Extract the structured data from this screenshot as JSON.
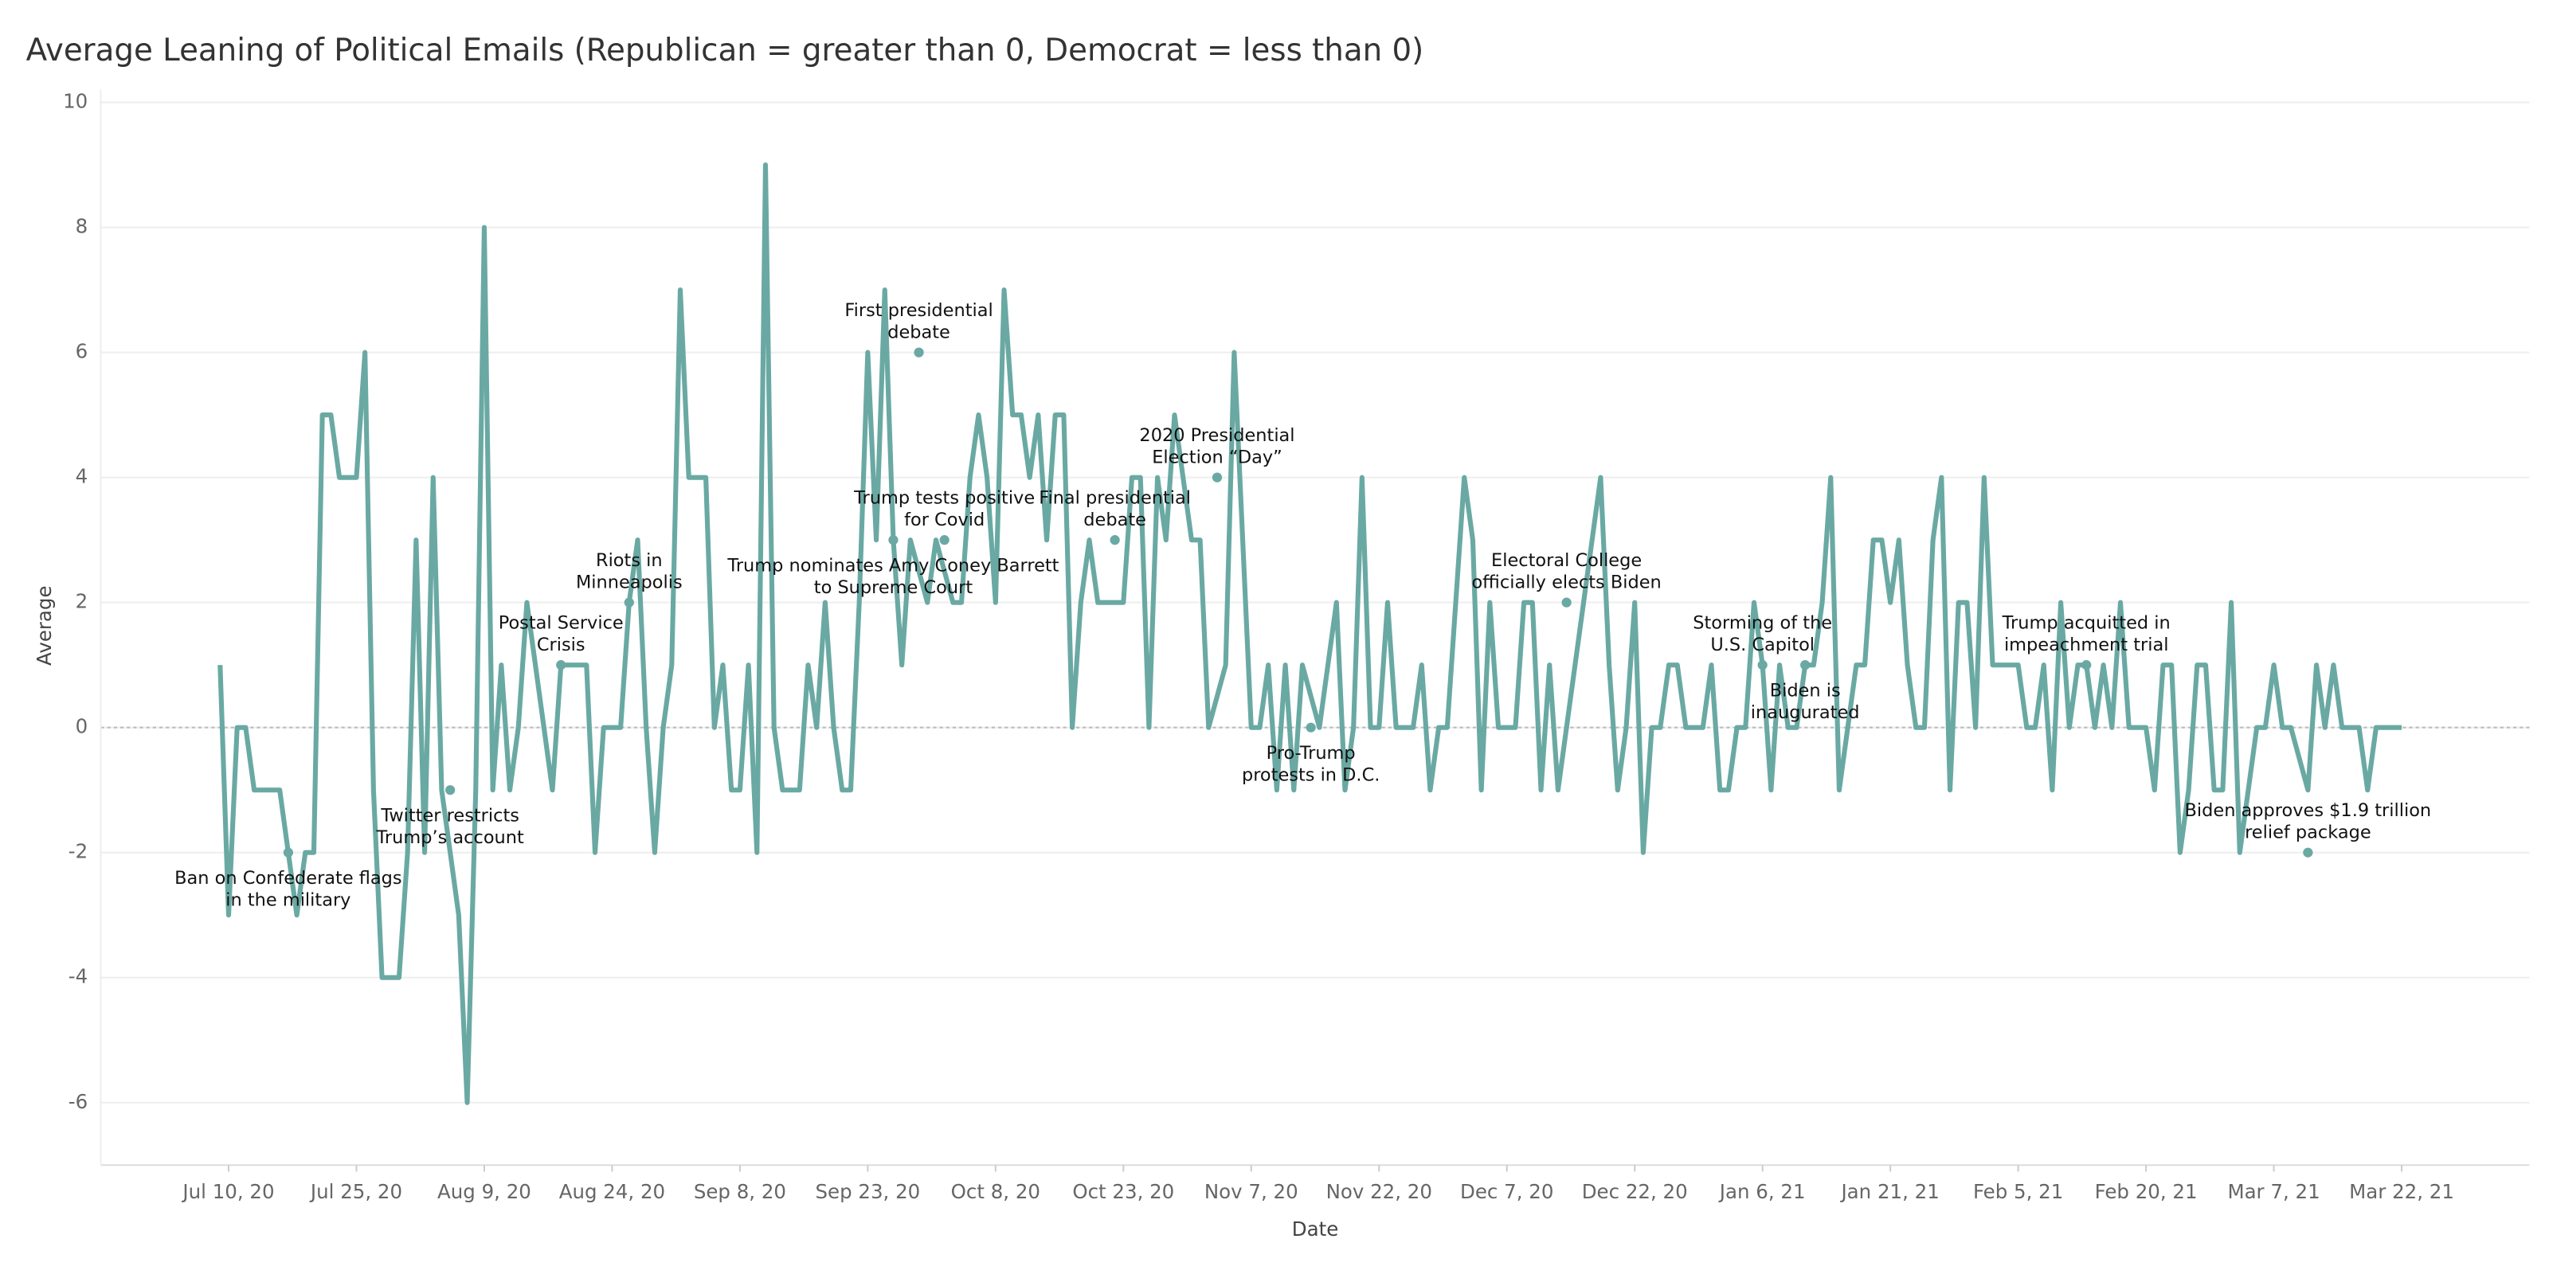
{
  "chart_data": {
    "type": "line",
    "title": "Average Leaning of Political Emails (Republican = greater than 0, Democrat = less than 0)",
    "x_label": "Date",
    "y_label": "Average",
    "xlim": [
      "2020-06-25",
      "2021-04-06"
    ],
    "ylim": [
      -7,
      10
    ],
    "yticks": [
      -6,
      -4,
      -2,
      0,
      2,
      4,
      6,
      8,
      10
    ],
    "xticks": [
      {
        "value": "2020-07-10",
        "label": "Jul 10, 20"
      },
      {
        "value": "2020-07-25",
        "label": "Jul 25, 20"
      },
      {
        "value": "2020-08-09",
        "label": "Aug 9, 20"
      },
      {
        "value": "2020-08-24",
        "label": "Aug 24, 20"
      },
      {
        "value": "2020-09-08",
        "label": "Sep 8, 20"
      },
      {
        "value": "2020-09-23",
        "label": "Sep 23, 20"
      },
      {
        "value": "2020-10-08",
        "label": "Oct 8, 20"
      },
      {
        "value": "2020-10-23",
        "label": "Oct 23, 20"
      },
      {
        "value": "2020-11-07",
        "label": "Nov 7, 20"
      },
      {
        "value": "2020-11-22",
        "label": "Nov 22, 20"
      },
      {
        "value": "2020-12-07",
        "label": "Dec 7, 20"
      },
      {
        "value": "2020-12-22",
        "label": "Dec 22, 20"
      },
      {
        "value": "2021-01-06",
        "label": "Jan 6, 21"
      },
      {
        "value": "2021-01-21",
        "label": "Jan 21, 21"
      },
      {
        "value": "2021-02-05",
        "label": "Feb 5, 21"
      },
      {
        "value": "2021-02-20",
        "label": "Feb 20, 21"
      },
      {
        "value": "2021-03-07",
        "label": "Mar 7, 21"
      },
      {
        "value": "2021-03-22",
        "label": "Mar 22, 21"
      }
    ],
    "grid": true,
    "zero_line": true,
    "x": [
      "2020-07-09",
      "2020-07-10",
      "2020-07-11",
      "2020-07-12",
      "2020-07-13",
      "2020-07-14",
      "2020-07-15",
      "2020-07-16",
      "2020-07-17",
      "2020-07-18",
      "2020-07-19",
      "2020-07-20",
      "2020-07-21",
      "2020-07-22",
      "2020-07-23",
      "2020-07-24",
      "2020-07-25",
      "2020-07-26",
      "2020-07-27",
      "2020-07-28",
      "2020-07-29",
      "2020-07-30",
      "2020-07-31",
      "2020-08-01",
      "2020-08-02",
      "2020-08-03",
      "2020-08-04",
      "2020-08-05",
      "2020-08-06",
      "2020-08-07",
      "2020-08-08",
      "2020-08-09",
      "2020-08-10",
      "2020-08-11",
      "2020-08-12",
      "2020-08-13",
      "2020-08-14",
      "2020-08-15",
      "2020-08-16",
      "2020-08-17",
      "2020-08-18",
      "2020-08-19",
      "2020-08-20",
      "2020-08-21",
      "2020-08-22",
      "2020-08-23",
      "2020-08-24",
      "2020-08-25",
      "2020-08-26",
      "2020-08-27",
      "2020-08-28",
      "2020-08-29",
      "2020-08-30",
      "2020-08-31",
      "2020-09-01",
      "2020-09-02",
      "2020-09-03",
      "2020-09-04",
      "2020-09-05",
      "2020-09-06",
      "2020-09-07",
      "2020-09-08",
      "2020-09-09",
      "2020-09-10",
      "2020-09-11",
      "2020-09-12",
      "2020-09-13",
      "2020-09-14",
      "2020-09-15",
      "2020-09-16",
      "2020-09-17",
      "2020-09-18",
      "2020-09-19",
      "2020-09-20",
      "2020-09-21",
      "2020-09-22",
      "2020-09-23",
      "2020-09-24",
      "2020-09-25",
      "2020-09-26",
      "2020-09-27",
      "2020-09-28",
      "2020-09-29",
      "2020-09-30",
      "2020-10-01",
      "2020-10-02",
      "2020-10-03",
      "2020-10-04",
      "2020-10-05",
      "2020-10-06",
      "2020-10-07",
      "2020-10-08",
      "2020-10-09",
      "2020-10-10",
      "2020-10-11",
      "2020-10-12",
      "2020-10-13",
      "2020-10-14",
      "2020-10-15",
      "2020-10-16",
      "2020-10-17",
      "2020-10-18",
      "2020-10-19",
      "2020-10-20",
      "2020-10-21",
      "2020-10-22",
      "2020-10-23",
      "2020-10-24",
      "2020-10-25",
      "2020-10-26",
      "2020-10-27",
      "2020-10-28",
      "2020-10-29",
      "2020-10-30",
      "2020-10-31",
      "2020-11-01",
      "2020-11-02",
      "2020-11-03",
      "2020-11-04",
      "2020-11-05",
      "2020-11-06",
      "2020-11-07",
      "2020-11-08",
      "2020-11-09",
      "2020-11-10",
      "2020-11-11",
      "2020-11-12",
      "2020-11-13",
      "2020-11-14",
      "2020-11-15",
      "2020-11-16",
      "2020-11-17",
      "2020-11-18",
      "2020-11-19",
      "2020-11-20",
      "2020-11-21",
      "2020-11-22",
      "2020-11-23",
      "2020-11-24",
      "2020-11-25",
      "2020-11-26",
      "2020-11-27",
      "2020-11-28",
      "2020-11-29",
      "2020-11-30",
      "2020-12-01",
      "2020-12-02",
      "2020-12-03",
      "2020-12-04",
      "2020-12-05",
      "2020-12-06",
      "2020-12-07",
      "2020-12-08",
      "2020-12-09",
      "2020-12-10",
      "2020-12-11",
      "2020-12-12",
      "2020-12-13",
      "2020-12-14",
      "2020-12-15",
      "2020-12-16",
      "2020-12-17",
      "2020-12-18",
      "2020-12-19",
      "2020-12-20",
      "2020-12-21",
      "2020-12-22",
      "2020-12-23",
      "2020-12-24",
      "2020-12-25",
      "2020-12-26",
      "2020-12-27",
      "2020-12-28",
      "2020-12-29",
      "2020-12-30",
      "2020-12-31",
      "2021-01-01",
      "2021-01-02",
      "2021-01-03",
      "2021-01-04",
      "2021-01-05",
      "2021-01-06",
      "2021-01-07",
      "2021-01-08",
      "2021-01-09",
      "2021-01-10",
      "2021-01-11",
      "2021-01-12",
      "2021-01-13",
      "2021-01-14",
      "2021-01-15",
      "2021-01-16",
      "2021-01-17",
      "2021-01-18",
      "2021-01-19",
      "2021-01-20",
      "2021-01-21",
      "2021-01-22",
      "2021-01-23",
      "2021-01-24",
      "2021-01-25",
      "2021-01-26",
      "2021-01-27",
      "2021-01-28",
      "2021-01-29",
      "2021-01-30",
      "2021-01-31",
      "2021-02-01",
      "2021-02-02",
      "2021-02-03",
      "2021-02-04",
      "2021-02-05",
      "2021-02-06",
      "2021-02-07",
      "2021-02-08",
      "2021-02-09",
      "2021-02-10",
      "2021-02-11",
      "2021-02-12",
      "2021-02-13",
      "2021-02-14",
      "2021-02-15",
      "2021-02-16",
      "2021-02-17",
      "2021-02-18",
      "2021-02-19",
      "2021-02-20",
      "2021-02-21",
      "2021-02-22",
      "2021-02-23",
      "2021-02-24",
      "2021-02-25",
      "2021-02-26",
      "2021-02-27",
      "2021-02-28",
      "2021-03-01",
      "2021-03-02",
      "2021-03-03",
      "2021-03-04",
      "2021-03-05",
      "2021-03-06",
      "2021-03-07",
      "2021-03-08",
      "2021-03-09",
      "2021-03-10",
      "2021-03-11",
      "2021-03-12",
      "2021-03-13",
      "2021-03-14",
      "2021-03-15",
      "2021-03-16",
      "2021-03-17",
      "2021-03-18",
      "2021-03-19",
      "2021-03-20",
      "2021-03-21",
      "2021-03-22"
    ],
    "series": [
      {
        "name": "Average",
        "color": "#6aa9a3",
        "values": [
          1,
          -3,
          0,
          0,
          -1,
          -1,
          -1,
          -1,
          -2,
          -3,
          -2,
          -2,
          5,
          5,
          4,
          4,
          4,
          6,
          -1,
          -4,
          -4,
          -4,
          -2,
          3,
          -2,
          4,
          -1,
          -2,
          -3,
          -6,
          -1,
          8,
          -1,
          1,
          -1,
          0,
          2,
          1,
          0,
          -1,
          1,
          1,
          1,
          1,
          -2,
          0,
          0,
          0,
          2,
          3,
          0,
          -2,
          0,
          1,
          7,
          4,
          4,
          4,
          0,
          1,
          -1,
          -1,
          1,
          -2,
          9,
          0,
          -1,
          -1,
          -1,
          1,
          0,
          2,
          0,
          -1,
          -1,
          2,
          6,
          3,
          7,
          3,
          1,
          3,
          2.5,
          2,
          3,
          2.5,
          2,
          2,
          4,
          5,
          4,
          2,
          7,
          5,
          5,
          4,
          5,
          3,
          5,
          5,
          0,
          2,
          3,
          2,
          2,
          2,
          2,
          4,
          4,
          0,
          4,
          3,
          5,
          4,
          3,
          3,
          0,
          0.5,
          1,
          6,
          3,
          0,
          0,
          1,
          -1,
          1,
          -1,
          1,
          0.5,
          0,
          1,
          2,
          -1,
          0,
          4,
          0,
          0,
          2,
          0,
          0,
          0,
          1,
          -1,
          0,
          0,
          2,
          4,
          3,
          -1,
          2,
          0,
          0,
          0,
          2,
          2,
          -1,
          1,
          -1,
          0,
          1,
          2,
          3,
          4,
          1,
          -1,
          0,
          2,
          -2,
          0,
          0,
          1,
          1,
          0,
          0,
          0,
          1,
          -1,
          -1,
          0,
          0,
          2,
          1,
          -1,
          1,
          0,
          0,
          1,
          1,
          2,
          4,
          -1,
          0,
          1,
          1,
          3,
          3,
          2,
          3,
          1,
          0,
          0,
          3,
          4,
          -1,
          2,
          2,
          0,
          4,
          1,
          1,
          1,
          1,
          0,
          0,
          1,
          -1,
          2,
          0,
          1,
          1,
          0,
          1,
          0,
          2,
          0,
          0,
          0,
          -1,
          1,
          1,
          -2,
          -1,
          1,
          1,
          -1,
          -1,
          2,
          -2,
          -1,
          0,
          0,
          1,
          0,
          0,
          -0.5,
          -1,
          1,
          0,
          1,
          0,
          0,
          0,
          -1,
          0,
          0,
          0,
          0
        ]
      }
    ],
    "annotations": [
      {
        "lines": [
          "Ban on Confederate flags",
          "in the military"
        ],
        "x": "2020-07-17",
        "y": -2,
        "position": "below"
      },
      {
        "lines": [
          "Twitter restricts",
          "Trump’s account"
        ],
        "x": "2020-08-05",
        "y": -1,
        "position": "below"
      },
      {
        "lines": [
          "Postal Service",
          "Crisis"
        ],
        "x": "2020-08-18",
        "y": 1,
        "position": "above"
      },
      {
        "lines": [
          "Riots in",
          "Minneapolis"
        ],
        "x": "2020-08-26",
        "y": 2,
        "position": "above"
      },
      {
        "lines": [
          "Trump nominates Amy Coney Barrett",
          "to Supreme Court"
        ],
        "x": "2020-09-26",
        "y": 3,
        "position": "below"
      },
      {
        "lines": [
          "First presidential",
          "debate"
        ],
        "x": "2020-09-29",
        "y": 6,
        "position": "above"
      },
      {
        "lines": [
          "Trump tests positive",
          "for Covid"
        ],
        "x": "2020-10-02",
        "y": 3,
        "position": "above"
      },
      {
        "lines": [
          "Final presidential",
          "debate"
        ],
        "x": "2020-10-22",
        "y": 3,
        "position": "above"
      },
      {
        "lines": [
          "2020 Presidential",
          "Election “Day”"
        ],
        "x": "2020-11-03",
        "y": 4,
        "position": "above"
      },
      {
        "lines": [
          "Pro-Trump",
          "protests in D.C."
        ],
        "x": "2020-11-14",
        "y": 0,
        "position": "below"
      },
      {
        "lines": [
          "Electoral College",
          "officially elects Biden"
        ],
        "x": "2020-12-14",
        "y": 2,
        "position": "above"
      },
      {
        "lines": [
          "Storming of the",
          "U.S. Capitol"
        ],
        "x": "2021-01-06",
        "y": 1,
        "position": "above"
      },
      {
        "lines": [
          "Biden is",
          "inaugurated"
        ],
        "x": "2021-01-11",
        "y": 1,
        "position": "below"
      },
      {
        "lines": [
          "Trump acquitted in",
          "impeachment trial"
        ],
        "x": "2021-02-13",
        "y": 1,
        "position": "above"
      },
      {
        "lines": [
          "Biden approves $1.9 trillion",
          "relief package"
        ],
        "x": "2021-03-11",
        "y": -2,
        "position": "above"
      }
    ]
  }
}
